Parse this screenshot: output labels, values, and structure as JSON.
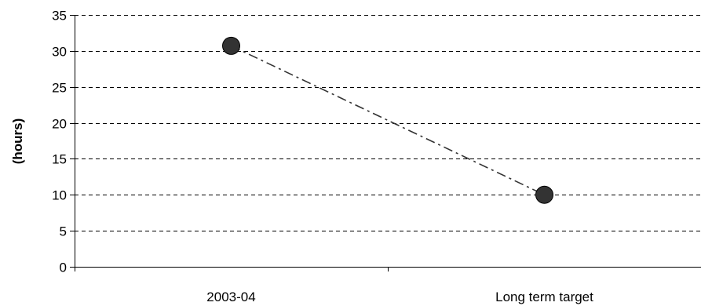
{
  "chart_data": {
    "type": "line",
    "categories": [
      "2003-04",
      "Long term target"
    ],
    "series": [
      {
        "values": [
          30.7,
          10
        ],
        "color": "#333333",
        "line_style": "dash-dot",
        "marker": "circle"
      }
    ],
    "ylabel": "(hours)",
    "xlabel": "",
    "ylim": [
      0,
      35
    ],
    "yticks": [
      0,
      5,
      10,
      15,
      20,
      25,
      30,
      35
    ],
    "grid": true,
    "grid_style": "dashed",
    "legend": "none"
  }
}
